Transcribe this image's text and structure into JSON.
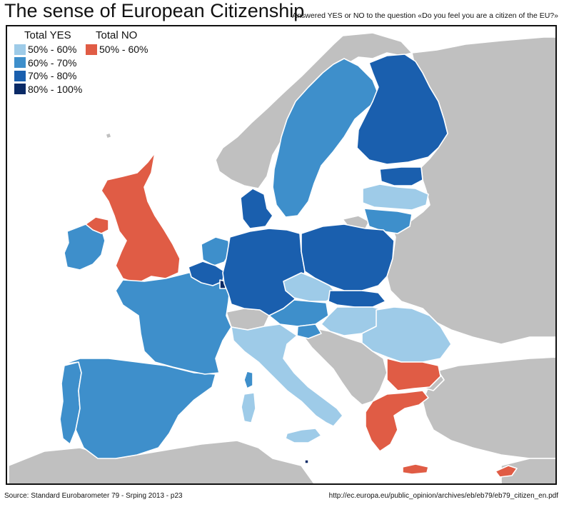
{
  "title": "The sense of European Citizenship",
  "subtitle": "Answered YES or NO to the question «Do you feel you are a citizen of the EU?»",
  "legend": {
    "yes_title": "Total YES",
    "no_title": "Total NO",
    "yes_items": [
      {
        "label": "50% - 60%",
        "color": "#9ecbe8"
      },
      {
        "label": "60% - 70%",
        "color": "#3e8fcb"
      },
      {
        "label": "70% - 80%",
        "color": "#1a5fae"
      },
      {
        "label": "80% - 100%",
        "color": "#0a2a66"
      }
    ],
    "no_items": [
      {
        "label": "50% - 60%",
        "color": "#e05c45"
      }
    ]
  },
  "colors": {
    "sea": "#ffffff",
    "non_eu": "#c0c0c0",
    "border": "#ffffff"
  },
  "regions": [
    {
      "name": "Ireland",
      "category": "yes-60-70"
    },
    {
      "name": "United Kingdom",
      "category": "no-50-60"
    },
    {
      "name": "Northern Ireland",
      "category": "no-50-60"
    },
    {
      "name": "Portugal",
      "category": "yes-60-70"
    },
    {
      "name": "Spain",
      "category": "yes-60-70"
    },
    {
      "name": "France",
      "category": "yes-60-70"
    },
    {
      "name": "Belgium",
      "category": "yes-70-80"
    },
    {
      "name": "Netherlands",
      "category": "yes-60-70"
    },
    {
      "name": "Luxembourg",
      "category": "yes-80-100"
    },
    {
      "name": "Germany",
      "category": "yes-70-80"
    },
    {
      "name": "Denmark",
      "category": "yes-70-80"
    },
    {
      "name": "Sweden",
      "category": "yes-60-70"
    },
    {
      "name": "Finland",
      "category": "yes-70-80"
    },
    {
      "name": "Estonia",
      "category": "yes-70-80"
    },
    {
      "name": "Latvia",
      "category": "yes-50-60"
    },
    {
      "name": "Lithuania",
      "category": "yes-60-70"
    },
    {
      "name": "Poland",
      "category": "yes-70-80"
    },
    {
      "name": "Czech Republic",
      "category": "yes-50-60"
    },
    {
      "name": "Slovakia",
      "category": "yes-70-80"
    },
    {
      "name": "Austria",
      "category": "yes-60-70"
    },
    {
      "name": "Slovenia",
      "category": "yes-60-70"
    },
    {
      "name": "Hungary",
      "category": "yes-50-60"
    },
    {
      "name": "Romania",
      "category": "yes-50-60"
    },
    {
      "name": "Bulgaria",
      "category": "no-50-60"
    },
    {
      "name": "Greece",
      "category": "no-50-60"
    },
    {
      "name": "Italy",
      "category": "yes-50-60"
    },
    {
      "name": "Sardinia",
      "category": "yes-50-60"
    },
    {
      "name": "Sicily",
      "category": "yes-50-60"
    },
    {
      "name": "Corsica",
      "category": "yes-60-70"
    },
    {
      "name": "Cyprus",
      "category": "no-50-60"
    },
    {
      "name": "Crete",
      "category": "no-50-60"
    },
    {
      "name": "Malta",
      "category": "yes-80-100"
    }
  ],
  "category_colors": {
    "yes-50-60": "#9ecbe8",
    "yes-60-70": "#3e8fcb",
    "yes-70-80": "#1a5fae",
    "yes-80-100": "#0a2a66",
    "no-50-60": "#e05c45"
  },
  "source": "Source: Standard Eurobarometer 79 - Srping 2013 - p23",
  "url": "http://ec.europa.eu/public_opinion/archives/eb/eb79/eb79_citizen_en.pdf"
}
